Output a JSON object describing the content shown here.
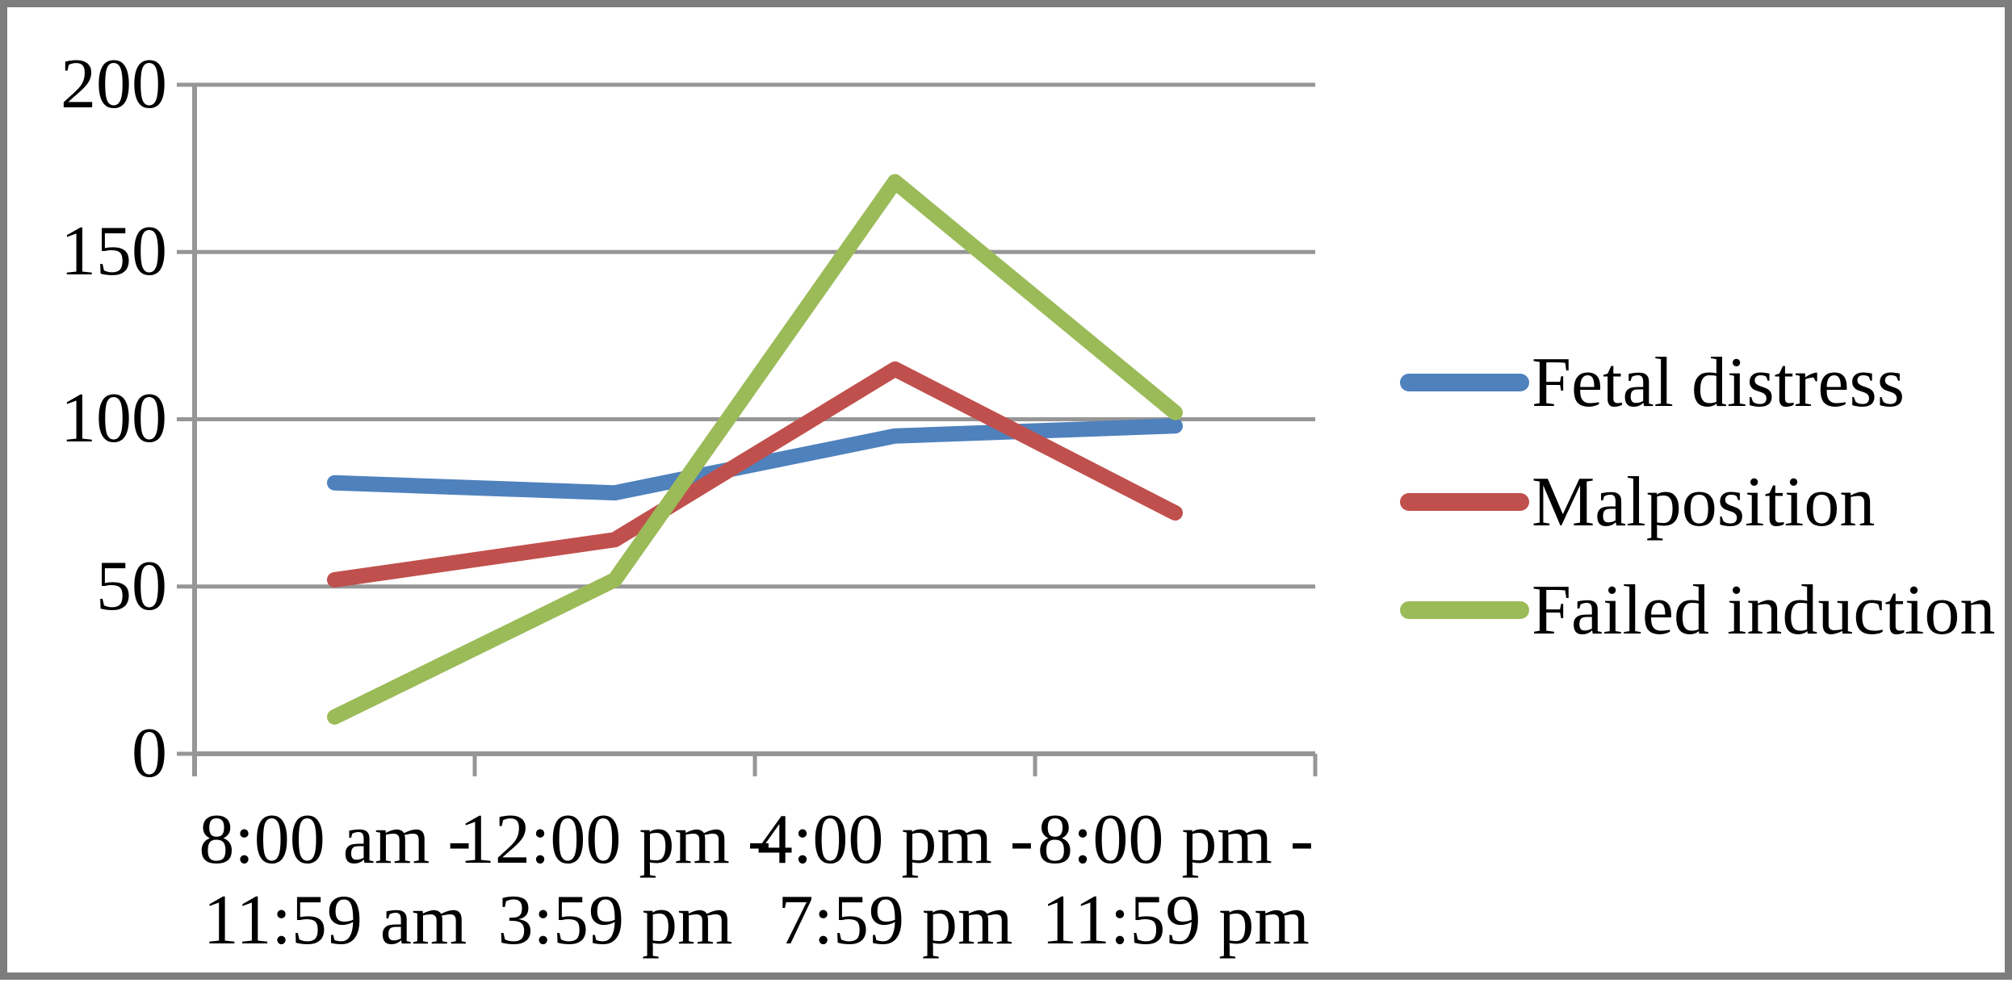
{
  "frame": {
    "border_color": "#7d7d7d",
    "background": "#ffffff"
  },
  "chart_data": {
    "type": "line",
    "title": "",
    "xlabel": "",
    "ylabel": "",
    "categories": [
      "8:00 am - 11:59 am",
      "12:00 pm - 3:59 pm",
      "4:00 pm - 7:59 pm",
      "8:00 pm - 11:59 pm"
    ],
    "x_tick_labels": [
      {
        "line1": "8:00 am -",
        "line2": "11:59 am"
      },
      {
        "line1": "12:00 pm -",
        "line2": "3:59 pm"
      },
      {
        "line1": "4:00 pm -",
        "line2": "7:59 pm"
      },
      {
        "line1": "8:00 pm -",
        "line2": "11:59 pm"
      }
    ],
    "series": [
      {
        "name": "Fetal distress",
        "color": "#4F81BD",
        "values": [
          81,
          78,
          95,
          98
        ]
      },
      {
        "name": "Malposition",
        "color": "#C0504D",
        "values": [
          52,
          64,
          115,
          72
        ]
      },
      {
        "name": "Failed induction",
        "color": "#9BBB59",
        "values": [
          11,
          52,
          171,
          102
        ]
      }
    ],
    "ylim": [
      0,
      200
    ],
    "yticks": [
      "200",
      "150",
      "100",
      "50",
      "0"
    ],
    "grid": true,
    "gridline_color": "#969696",
    "axis_color": "#969696",
    "legend_position": "right"
  }
}
